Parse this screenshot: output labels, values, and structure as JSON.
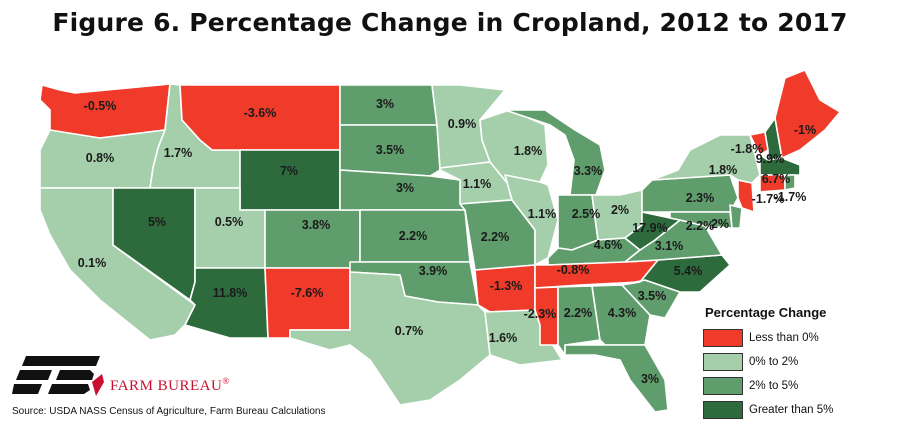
{
  "title": "Figure 6. Percentage Change in Cropland, 2012 to 2017",
  "colors": {
    "neg": "#f03a2a",
    "low": "#a4cfaa",
    "mid": "#5f9d6c",
    "high": "#2d6b3d"
  },
  "legend": {
    "title": "Percentage Change",
    "items": [
      {
        "label": "Less than 0%",
        "class": "neg"
      },
      {
        "label": "0% to 2%",
        "class": "low"
      },
      {
        "label": "2% to 5%",
        "class": "mid"
      },
      {
        "label": "Greater than 5%",
        "class": "high"
      }
    ]
  },
  "states": [
    {
      "id": "WA",
      "value": "-0.5%",
      "class": "neg"
    },
    {
      "id": "OR",
      "value": "0.8%",
      "class": "low"
    },
    {
      "id": "CA",
      "value": "0.1%",
      "class": "low"
    },
    {
      "id": "ID",
      "value": "1.7%",
      "class": "low"
    },
    {
      "id": "NV",
      "value": "5%",
      "class": "high"
    },
    {
      "id": "MT",
      "value": "-3.6%",
      "class": "neg"
    },
    {
      "id": "WY",
      "value": "7%",
      "class": "high"
    },
    {
      "id": "UT",
      "value": "0.5%",
      "class": "low"
    },
    {
      "id": "AZ",
      "value": "11.8%",
      "class": "high"
    },
    {
      "id": "CO",
      "value": "3.8%",
      "class": "mid"
    },
    {
      "id": "NM",
      "value": "-7.6%",
      "class": "neg"
    },
    {
      "id": "ND",
      "value": "3%",
      "class": "mid"
    },
    {
      "id": "SD",
      "value": "3.5%",
      "class": "mid"
    },
    {
      "id": "NE",
      "value": "3%",
      "class": "mid"
    },
    {
      "id": "KS",
      "value": "2.2%",
      "class": "mid"
    },
    {
      "id": "OK",
      "value": "3.9%",
      "class": "mid"
    },
    {
      "id": "TX",
      "value": "0.7%",
      "class": "low"
    },
    {
      "id": "MN",
      "value": "0.9%",
      "class": "low"
    },
    {
      "id": "IA",
      "value": "1.1%",
      "class": "low"
    },
    {
      "id": "MO",
      "value": "2.2%",
      "class": "mid"
    },
    {
      "id": "AR",
      "value": "-1.3%",
      "class": "neg"
    },
    {
      "id": "LA",
      "value": "1.6%",
      "class": "low"
    },
    {
      "id": "WI",
      "value": "1.8%",
      "class": "low"
    },
    {
      "id": "IL",
      "value": "1.1%",
      "class": "low"
    },
    {
      "id": "MI",
      "value": "3.3%",
      "class": "mid"
    },
    {
      "id": "IN",
      "value": "2.5%",
      "class": "mid"
    },
    {
      "id": "OH",
      "value": "2%",
      "class": "low"
    },
    {
      "id": "KY",
      "value": "4.6%",
      "class": "mid"
    },
    {
      "id": "TN",
      "value": "-0.8%",
      "class": "neg"
    },
    {
      "id": "MS",
      "value": "-2.3%",
      "class": "neg"
    },
    {
      "id": "AL",
      "value": "2.2%",
      "class": "mid"
    },
    {
      "id": "GA",
      "value": "4.3%",
      "class": "mid"
    },
    {
      "id": "FL",
      "value": "3%",
      "class": "mid"
    },
    {
      "id": "SC",
      "value": "3.5%",
      "class": "mid"
    },
    {
      "id": "NC",
      "value": "5.4%",
      "class": "high"
    },
    {
      "id": "VA",
      "value": "3.1%",
      "class": "mid"
    },
    {
      "id": "WV",
      "value": "17.9%",
      "class": "high"
    },
    {
      "id": "PA",
      "value": "2.3%",
      "class": "mid"
    },
    {
      "id": "NY",
      "value": "1.8%",
      "class": "low"
    },
    {
      "id": "MD",
      "value": "2.2%",
      "class": "mid"
    },
    {
      "id": "DE",
      "value": "2%",
      "class": "mid"
    },
    {
      "id": "NJ",
      "value": "-1.7%",
      "class": "neg"
    },
    {
      "id": "VT",
      "value": "-1.8%",
      "class": "neg"
    },
    {
      "id": "NH",
      "value": "9.9%",
      "class": "high"
    },
    {
      "id": "MA",
      "value": "6.7%",
      "class": "high"
    },
    {
      "id": "CT",
      "value": "-1.7%",
      "class": "neg"
    },
    {
      "id": "RI",
      "value": "",
      "class": "mid"
    },
    {
      "id": "ME",
      "value": "-1%",
      "class": "neg"
    }
  ],
  "logo": {
    "name": "FARM BUREAU",
    "mark": "®"
  },
  "source": "Source: USDA NASS Census of Agriculture, Farm Bureau Calculations"
}
